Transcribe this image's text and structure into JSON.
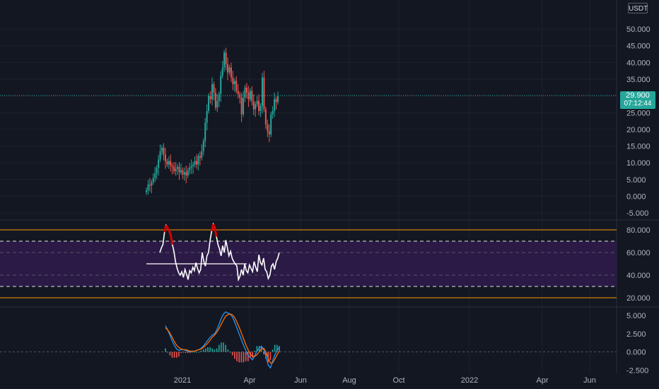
{
  "currency": "USDT",
  "last_price_label": {
    "price": "29.900",
    "countdown": "07:12:44",
    "color": "#26a69a"
  },
  "colors": {
    "background": "#131722",
    "grid": "#1e222d",
    "up": "#26a69a",
    "down": "#ef5350",
    "rsi_band": "#2a1a45",
    "rsi_bound": "#ff9800",
    "macd_line": "#2196f3",
    "signal_line": "#ff6d00"
  },
  "time_axis": {
    "labels": [
      "2021",
      "Apr",
      "Jun",
      "Aug",
      "Oct",
      "2022",
      "Apr",
      "Jun"
    ]
  },
  "price_pane": {
    "ticks": [
      "50.000",
      "45.000",
      "40.000",
      "35.000",
      "30.000",
      "25.000",
      "20.000",
      "15.000",
      "10.000",
      "5.000",
      "0.000",
      "-5.000"
    ]
  },
  "rsi_pane": {
    "ticks": [
      "80.000",
      "60.000",
      "40.000",
      "20.000"
    ]
  },
  "macd_pane": {
    "ticks": [
      "5.000",
      "2.500",
      "0.000",
      "-2.500"
    ]
  },
  "chart_data": [
    {
      "type": "candlestick",
      "ylim": [
        -5,
        50
      ],
      "x_units": "months since 2021-01 start (approx)",
      "closes": [
        1.8,
        3.5,
        3.2,
        4.2,
        5.5,
        6.8,
        8.5,
        11,
        13.5,
        14.5,
        12.5,
        10.5,
        9.5,
        10.5,
        9.2,
        8.8,
        7.5,
        8.2,
        8.8,
        7.2,
        7.8,
        6.5,
        7.2,
        6.2,
        7.8,
        8.5,
        9.0,
        9.5,
        10.5,
        9.5,
        12.0,
        11.5,
        13.5,
        16.5,
        22.0,
        25.5,
        30.0,
        29.0,
        33.5,
        31.0,
        26.5,
        28.5,
        30.5,
        36.0,
        38.5,
        43.0,
        39.5,
        37.0,
        38.5,
        35.5,
        33.5,
        34.5,
        31.5,
        30.5,
        29.5,
        24.5,
        29.5,
        32.5,
        31.0,
        29.0,
        31.5,
        28.5,
        26.0,
        27.5,
        28.5,
        25.5,
        27.0,
        35.5,
        26.0,
        21.5,
        19.5,
        18.5,
        24.5,
        25.5,
        29.0,
        28.2,
        29.9
      ]
    },
    {
      "type": "line",
      "name": "RSI",
      "ylim": [
        15,
        85
      ],
      "band": [
        30,
        70
      ],
      "bounds": [
        20,
        80
      ],
      "values": [
        60,
        64,
        67,
        78,
        84,
        82,
        79,
        75,
        67,
        61,
        52,
        46,
        42,
        40,
        43,
        38,
        45,
        41,
        36,
        44,
        42,
        47,
        44,
        51,
        46,
        42,
        45,
        60,
        52,
        48,
        57,
        60,
        71,
        79,
        85,
        82,
        74,
        67,
        63,
        57,
        66,
        60,
        71,
        64,
        57,
        61,
        55,
        52,
        50,
        48,
        36,
        39,
        45,
        40,
        50,
        44,
        42,
        49,
        46,
        43,
        52,
        47,
        43,
        58,
        51,
        49,
        55,
        45,
        43,
        37,
        40,
        48,
        50,
        45,
        52,
        55,
        60
      ],
      "reference_line": 50
    },
    {
      "type": "line",
      "name": "MACD",
      "ylim": [
        -3,
        6.5
      ],
      "macd": [
        3.6,
        3.0,
        2.3,
        1.5,
        0.9,
        0.4,
        0.2,
        0.3,
        0.3,
        0.2,
        0.1,
        0.0,
        0.1,
        0.1,
        0.2,
        0.3,
        0.5,
        0.8,
        1.2,
        1.6,
        2.0,
        2.3,
        2.5,
        3.0,
        3.8,
        4.6,
        5.2,
        5.5,
        5.3,
        5.2,
        4.8,
        4.1,
        3.3,
        2.5,
        1.7,
        0.9,
        0.2,
        -0.5,
        -0.8,
        -1.1,
        -0.5,
        0.1,
        0.5,
        0.8,
        0.3,
        -0.6,
        -1.8,
        -2.2,
        -1.3,
        -0.4,
        0.2,
        0.6
      ],
      "signal": [
        3.3,
        3.0,
        2.6,
        2.0,
        1.4,
        0.9,
        0.6,
        0.4,
        0.3,
        0.3,
        0.2,
        0.1,
        0.1,
        0.1,
        0.2,
        0.3,
        0.4,
        0.6,
        0.9,
        1.2,
        1.6,
        2.0,
        2.3,
        2.7,
        3.2,
        3.8,
        4.4,
        4.9,
        5.1,
        5.2,
        5.1,
        4.7,
        4.1,
        3.4,
        2.6,
        1.8,
        1.0,
        0.3,
        -0.3,
        -0.6,
        -0.6,
        -0.4,
        0.0,
        0.4,
        0.5,
        0.0,
        -0.9,
        -1.5,
        -1.5,
        -1.0,
        -0.4,
        0.1
      ]
    }
  ]
}
